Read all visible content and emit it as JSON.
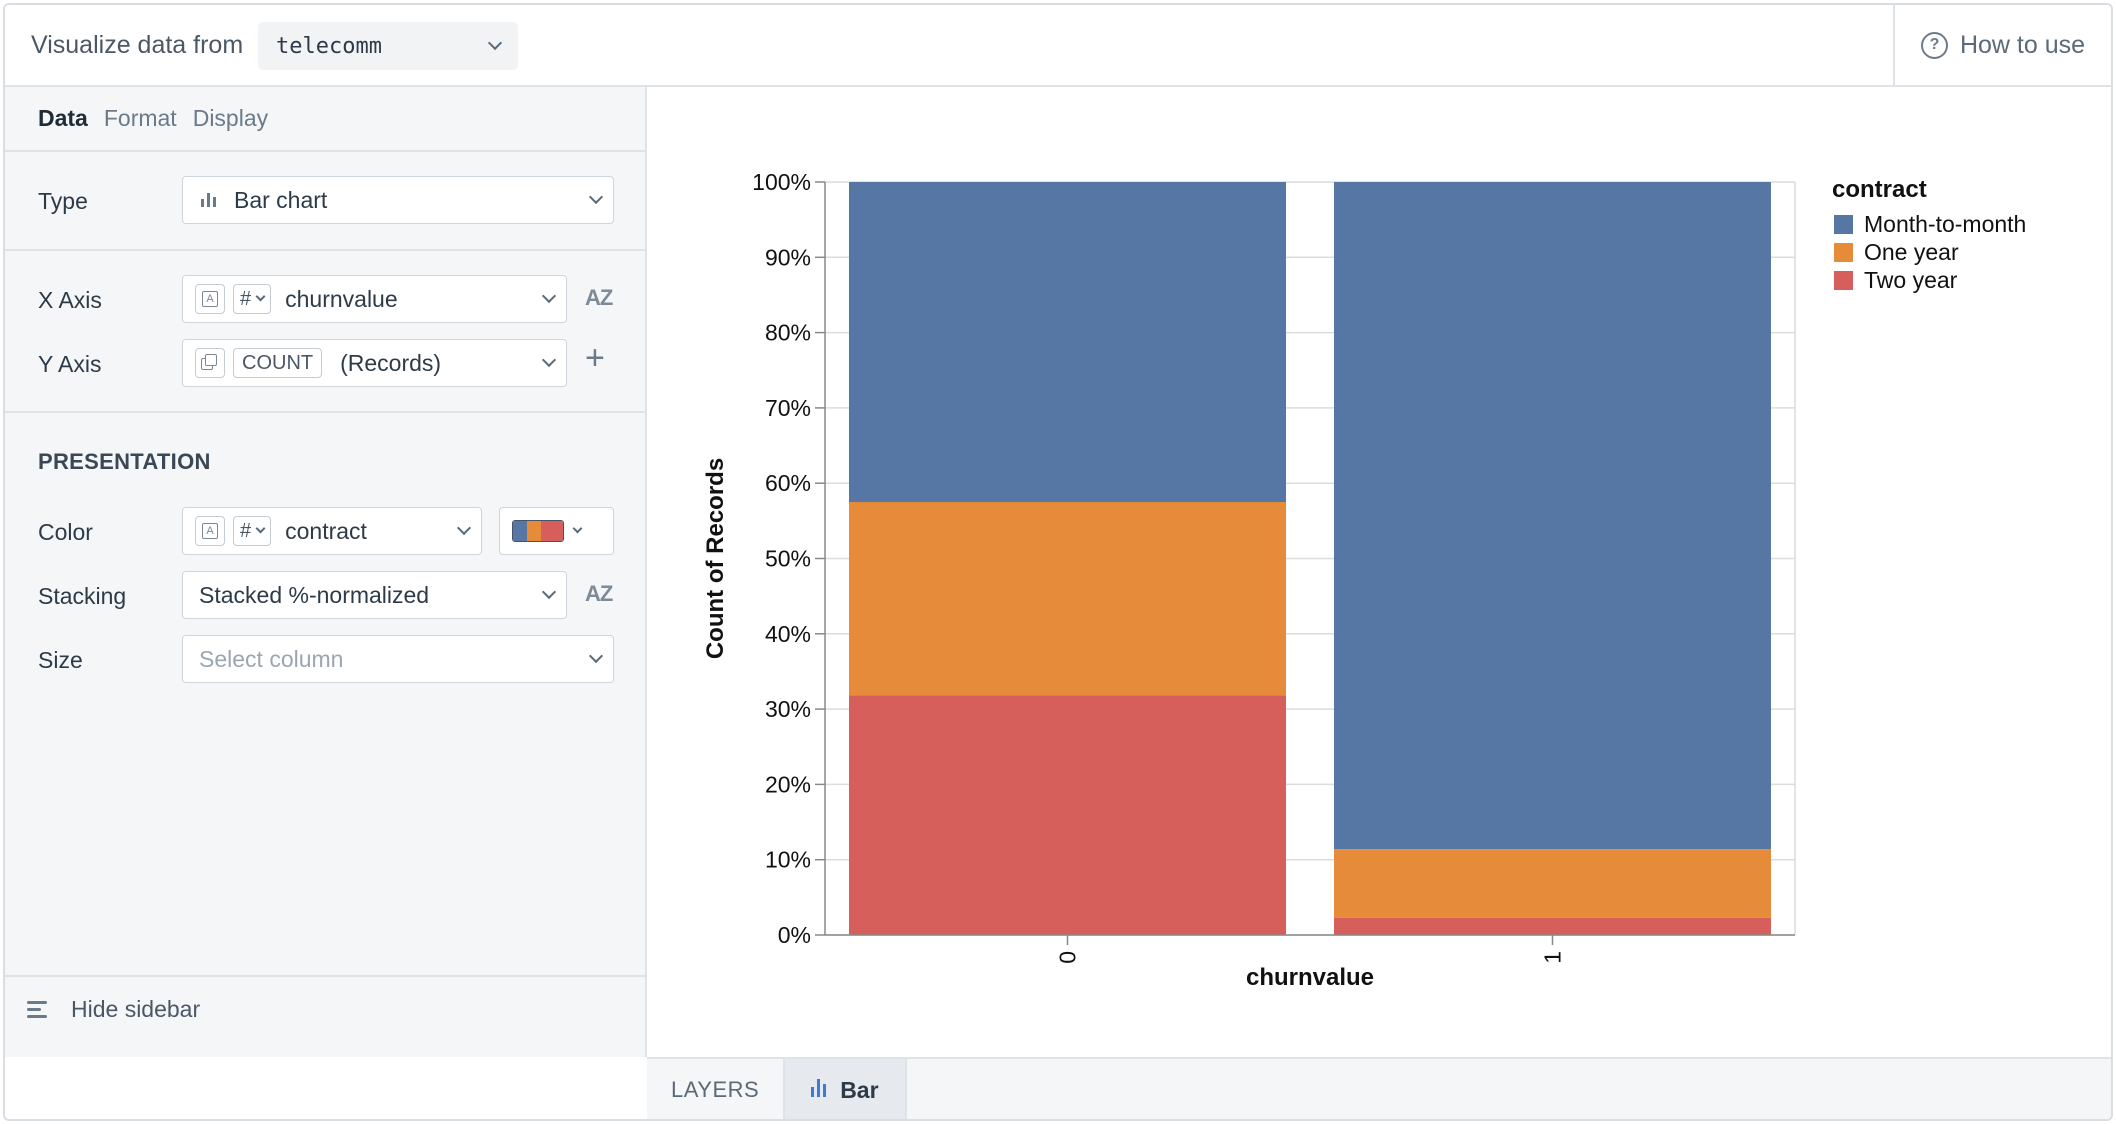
{
  "topbar": {
    "label": "Visualize data from",
    "dataset": "telecomm",
    "help": "How to use"
  },
  "tabs": [
    {
      "label": "Data",
      "active": true
    },
    {
      "label": "Format",
      "active": false
    },
    {
      "label": "Display",
      "active": false
    }
  ],
  "type_row": {
    "label": "Type",
    "value": "Bar chart"
  },
  "x_axis": {
    "label": "X Axis",
    "type_tag": "#",
    "value": "churnvalue"
  },
  "y_axis": {
    "label": "Y Axis",
    "agg": "COUNT",
    "value": "(Records)"
  },
  "presentation": {
    "title": "PRESENTATION",
    "color": {
      "label": "Color",
      "type_tag": "#",
      "value": "contract",
      "palette": [
        "#5677a4",
        "#e68b3a",
        "#d65f5b"
      ]
    },
    "stacking": {
      "label": "Stacking",
      "value": "Stacked %-normalized"
    },
    "size": {
      "label": "Size",
      "placeholder": "Select column"
    }
  },
  "footer": {
    "hide_sidebar": "Hide sidebar",
    "layers": "LAYERS",
    "layer_name": "Bar"
  },
  "chart_data": {
    "type": "bar",
    "stacking": "normalize",
    "categories": [
      "0",
      "1"
    ],
    "series": [
      {
        "name": "Month-to-month",
        "color": "#5677a4",
        "values": [
          42.5,
          88.6
        ]
      },
      {
        "name": "One year",
        "color": "#e68b3a",
        "values": [
          25.7,
          9.1
        ]
      },
      {
        "name": "Two year",
        "color": "#d65f5b",
        "values": [
          31.8,
          2.3
        ]
      }
    ],
    "xlabel": "churnvalue",
    "ylabel": "Count of Records",
    "legend_title": "contract",
    "ylim": [
      0,
      100
    ],
    "yticks": [
      "0%",
      "10%",
      "20%",
      "30%",
      "40%",
      "50%",
      "60%",
      "70%",
      "80%",
      "90%",
      "100%"
    ],
    "grid": true,
    "legend_position": "top-right"
  }
}
